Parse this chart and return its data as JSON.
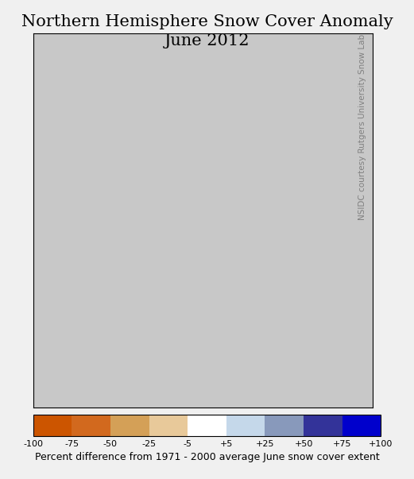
{
  "title_line1": "Northern Hemisphere Snow Cover Anomaly",
  "title_line2": "June 2012",
  "title_fontsize": 15,
  "colorbar_label": "Percent difference from 1971 - 2000 average June snow cover extent",
  "colorbar_label_fontsize": 9,
  "tick_labels": [
    "-100",
    "-75",
    "-50",
    "-25",
    "-5",
    "+5",
    "+25",
    "+50",
    "+75",
    "+100"
  ],
  "tick_positions": [
    -100,
    -75,
    -50,
    -25,
    -5,
    5,
    25,
    50,
    75,
    100
  ],
  "colorbar_colors": [
    "#CC5500",
    "#D2691E",
    "#D4A057",
    "#E8C99A",
    "#FFFFFF",
    "#C5D8EA",
    "#8899BB",
    "#333399",
    "#0000CC"
  ],
  "colorbar_boundaries": [
    -100,
    -75,
    -50,
    -25,
    -5,
    5,
    25,
    50,
    75,
    100
  ],
  "background_color": "#C8C8C8",
  "map_bg_color": "#C8C8C8",
  "credit_text": "NSIDC courtesy Rutgers University Snow Lab",
  "credit_fontsize": 7.5,
  "fig_bg_color": "#F0F0F0",
  "border_color": "#000000"
}
